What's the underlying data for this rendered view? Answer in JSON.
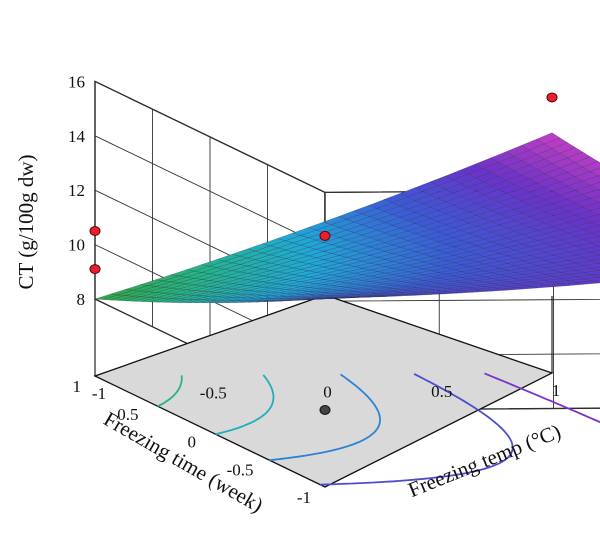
{
  "chart_data": {
    "type": "surface",
    "zlabel": "CT (g/100g dw)",
    "xlabel": "Freezing temp (°C)",
    "ylabel": "Freezing time (week)",
    "zlim": [
      8,
      16
    ],
    "z_ticks": [
      "8",
      "10",
      "12",
      "14",
      "16"
    ],
    "xlim": [
      -1,
      1
    ],
    "x_ticks": [
      "-1",
      "-0.5",
      "0",
      "0.5",
      "1"
    ],
    "ylim": [
      -1,
      1
    ],
    "y_ticks": [
      "-1",
      "-0.5",
      "0",
      "0.5",
      "1"
    ],
    "surface_corners": [
      {
        "freezing_temp": -1,
        "freezing_time": 1,
        "ct": 8.0
      },
      {
        "freezing_temp": -1,
        "freezing_time": -1,
        "ct": 12.1
      },
      {
        "freezing_temp": 1,
        "freezing_time": -1,
        "ct": 13.3
      },
      {
        "freezing_temp": 1,
        "freezing_time": 1,
        "ct": 14.0
      }
    ],
    "design_points": [
      {
        "freezing_temp": -1,
        "freezing_time": 1,
        "ct": 10.5
      },
      {
        "freezing_temp": -1,
        "freezing_time": 1,
        "ct": 9.1
      },
      {
        "freezing_temp": -1,
        "freezing_time": -1,
        "ct": 14.4
      },
      {
        "freezing_temp": 1,
        "freezing_time": 1,
        "ct": 15.3
      }
    ],
    "contour_levels": [
      9,
      10,
      11,
      12,
      13
    ],
    "colormap": [
      "#31a83a",
      "#25b585",
      "#1fa9d6",
      "#3b5bd6",
      "#6a32c8",
      "#c33fc2"
    ],
    "floor_color": "#d9d9d9",
    "grid": true
  }
}
